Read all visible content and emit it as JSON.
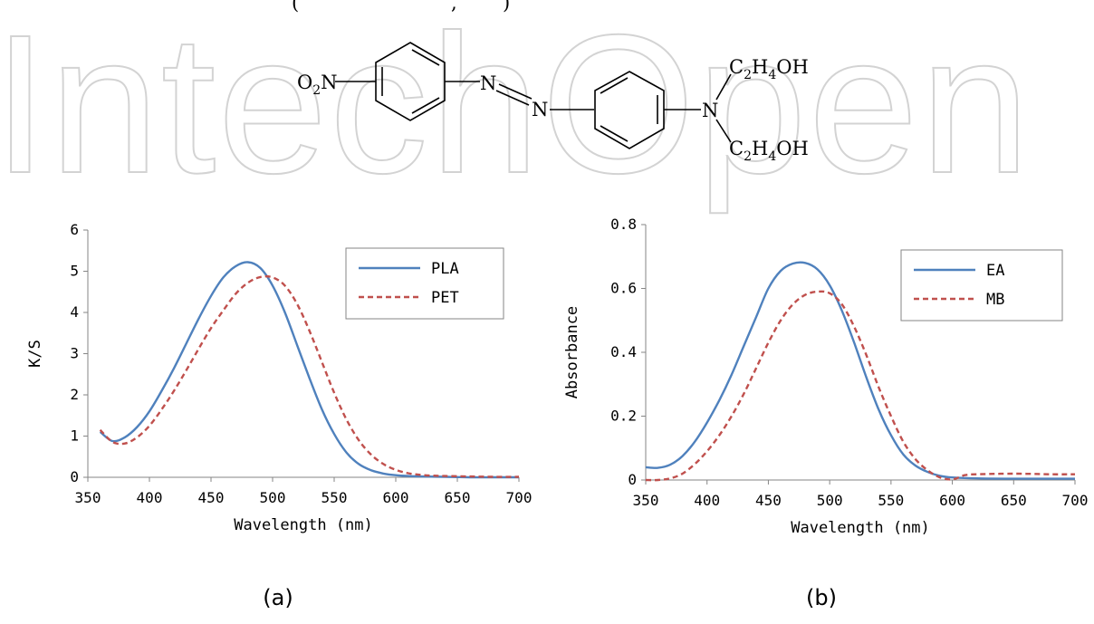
{
  "watermark": "IntechOpen",
  "header_fragment": "(",
  "header_fragment_2": ",",
  "header_fragment_3": ")",
  "structure": {
    "o2n": {
      "O": "O",
      "sub2": "2",
      "N": "N"
    },
    "azo_n1": "N",
    "azo_n2": "N",
    "amine_n": "N",
    "top_group": {
      "C": "C",
      "s1": "2",
      "H": "H",
      "s2": "4",
      "OH": "OH"
    },
    "bottom_group": {
      "C": "C",
      "s1": "2",
      "H": "H",
      "s2": "4",
      "OH": "OH"
    }
  },
  "captions": {
    "a": "(a)",
    "b": "(b)"
  },
  "colors": {
    "series1": "#4F81BD",
    "series2": "#C0504D",
    "axis": "#868686",
    "watermark": "#d3d3d3"
  },
  "chart_data": [
    {
      "type": "line",
      "xlabel": "Wavelength (nm)",
      "ylabel": "K/S",
      "xlim": [
        350,
        700
      ],
      "ylim": [
        0,
        6
      ],
      "xticks": [
        350,
        400,
        450,
        500,
        550,
        600,
        650,
        700
      ],
      "yticks": [
        0,
        1,
        2,
        3,
        4,
        5,
        6
      ],
      "grid": false,
      "legend_position": "top-right",
      "series": [
        {
          "name": "PLA",
          "style": "solid",
          "color": "#4F81BD",
          "x": [
            360,
            370,
            380,
            390,
            400,
            410,
            420,
            430,
            440,
            450,
            460,
            470,
            480,
            490,
            500,
            510,
            520,
            530,
            540,
            550,
            560,
            570,
            580,
            590,
            600,
            610,
            620,
            640,
            660,
            680,
            700
          ],
          "y": [
            1.1,
            0.88,
            0.97,
            1.22,
            1.6,
            2.1,
            2.65,
            3.25,
            3.85,
            4.4,
            4.85,
            5.12,
            5.22,
            5.08,
            4.65,
            4.0,
            3.2,
            2.4,
            1.65,
            1.05,
            0.6,
            0.32,
            0.17,
            0.09,
            0.05,
            0.03,
            0.02,
            0.01,
            0.0,
            0.0,
            0.0
          ]
        },
        {
          "name": "PET",
          "style": "dashed",
          "color": "#C0504D",
          "x": [
            360,
            370,
            380,
            390,
            400,
            410,
            420,
            430,
            440,
            450,
            460,
            470,
            480,
            490,
            500,
            510,
            520,
            530,
            540,
            550,
            560,
            570,
            580,
            590,
            600,
            610,
            620,
            630,
            640,
            660,
            680,
            700
          ],
          "y": [
            1.15,
            0.86,
            0.82,
            0.97,
            1.25,
            1.65,
            2.1,
            2.6,
            3.12,
            3.62,
            4.05,
            4.45,
            4.72,
            4.86,
            4.85,
            4.65,
            4.2,
            3.55,
            2.8,
            2.05,
            1.4,
            0.9,
            0.55,
            0.32,
            0.18,
            0.1,
            0.06,
            0.04,
            0.03,
            0.02,
            0.01,
            0.01
          ]
        }
      ]
    },
    {
      "type": "line",
      "xlabel": "Wavelength (nm)",
      "ylabel": "Absorbance",
      "xlim": [
        350,
        700
      ],
      "ylim": [
        0,
        0.8
      ],
      "xticks": [
        350,
        400,
        450,
        500,
        550,
        600,
        650,
        700
      ],
      "yticks": [
        0,
        0.2,
        0.4,
        0.6,
        0.8
      ],
      "ytick_labels": [
        "0",
        "0.2",
        "0.4",
        "0.6",
        "0.8"
      ],
      "grid": false,
      "legend_position": "top-right",
      "series": [
        {
          "name": "EA",
          "style": "solid",
          "color": "#4F81BD",
          "x": [
            350,
            360,
            370,
            380,
            390,
            400,
            410,
            420,
            430,
            440,
            450,
            460,
            470,
            480,
            490,
            500,
            510,
            520,
            530,
            540,
            550,
            560,
            570,
            580,
            590,
            600,
            620,
            650,
            680,
            700
          ],
          "y": [
            0.04,
            0.038,
            0.048,
            0.075,
            0.12,
            0.18,
            0.25,
            0.33,
            0.42,
            0.51,
            0.6,
            0.655,
            0.678,
            0.68,
            0.66,
            0.61,
            0.53,
            0.43,
            0.32,
            0.22,
            0.14,
            0.08,
            0.045,
            0.025,
            0.013,
            0.008,
            0.005,
            0.004,
            0.004,
            0.004
          ]
        },
        {
          "name": "MB",
          "style": "dashed",
          "color": "#C0504D",
          "x": [
            350,
            360,
            370,
            380,
            390,
            400,
            410,
            420,
            430,
            440,
            450,
            460,
            470,
            480,
            490,
            500,
            510,
            520,
            530,
            540,
            550,
            560,
            570,
            580,
            590,
            600,
            610,
            620,
            650,
            680,
            700
          ],
          "y": [
            0.0,
            0.0,
            0.005,
            0.02,
            0.05,
            0.09,
            0.14,
            0.2,
            0.27,
            0.35,
            0.43,
            0.5,
            0.55,
            0.58,
            0.59,
            0.585,
            0.55,
            0.48,
            0.39,
            0.29,
            0.2,
            0.12,
            0.065,
            0.03,
            0.008,
            0.002,
            0.015,
            0.018,
            0.02,
            0.018,
            0.018
          ]
        }
      ]
    }
  ]
}
